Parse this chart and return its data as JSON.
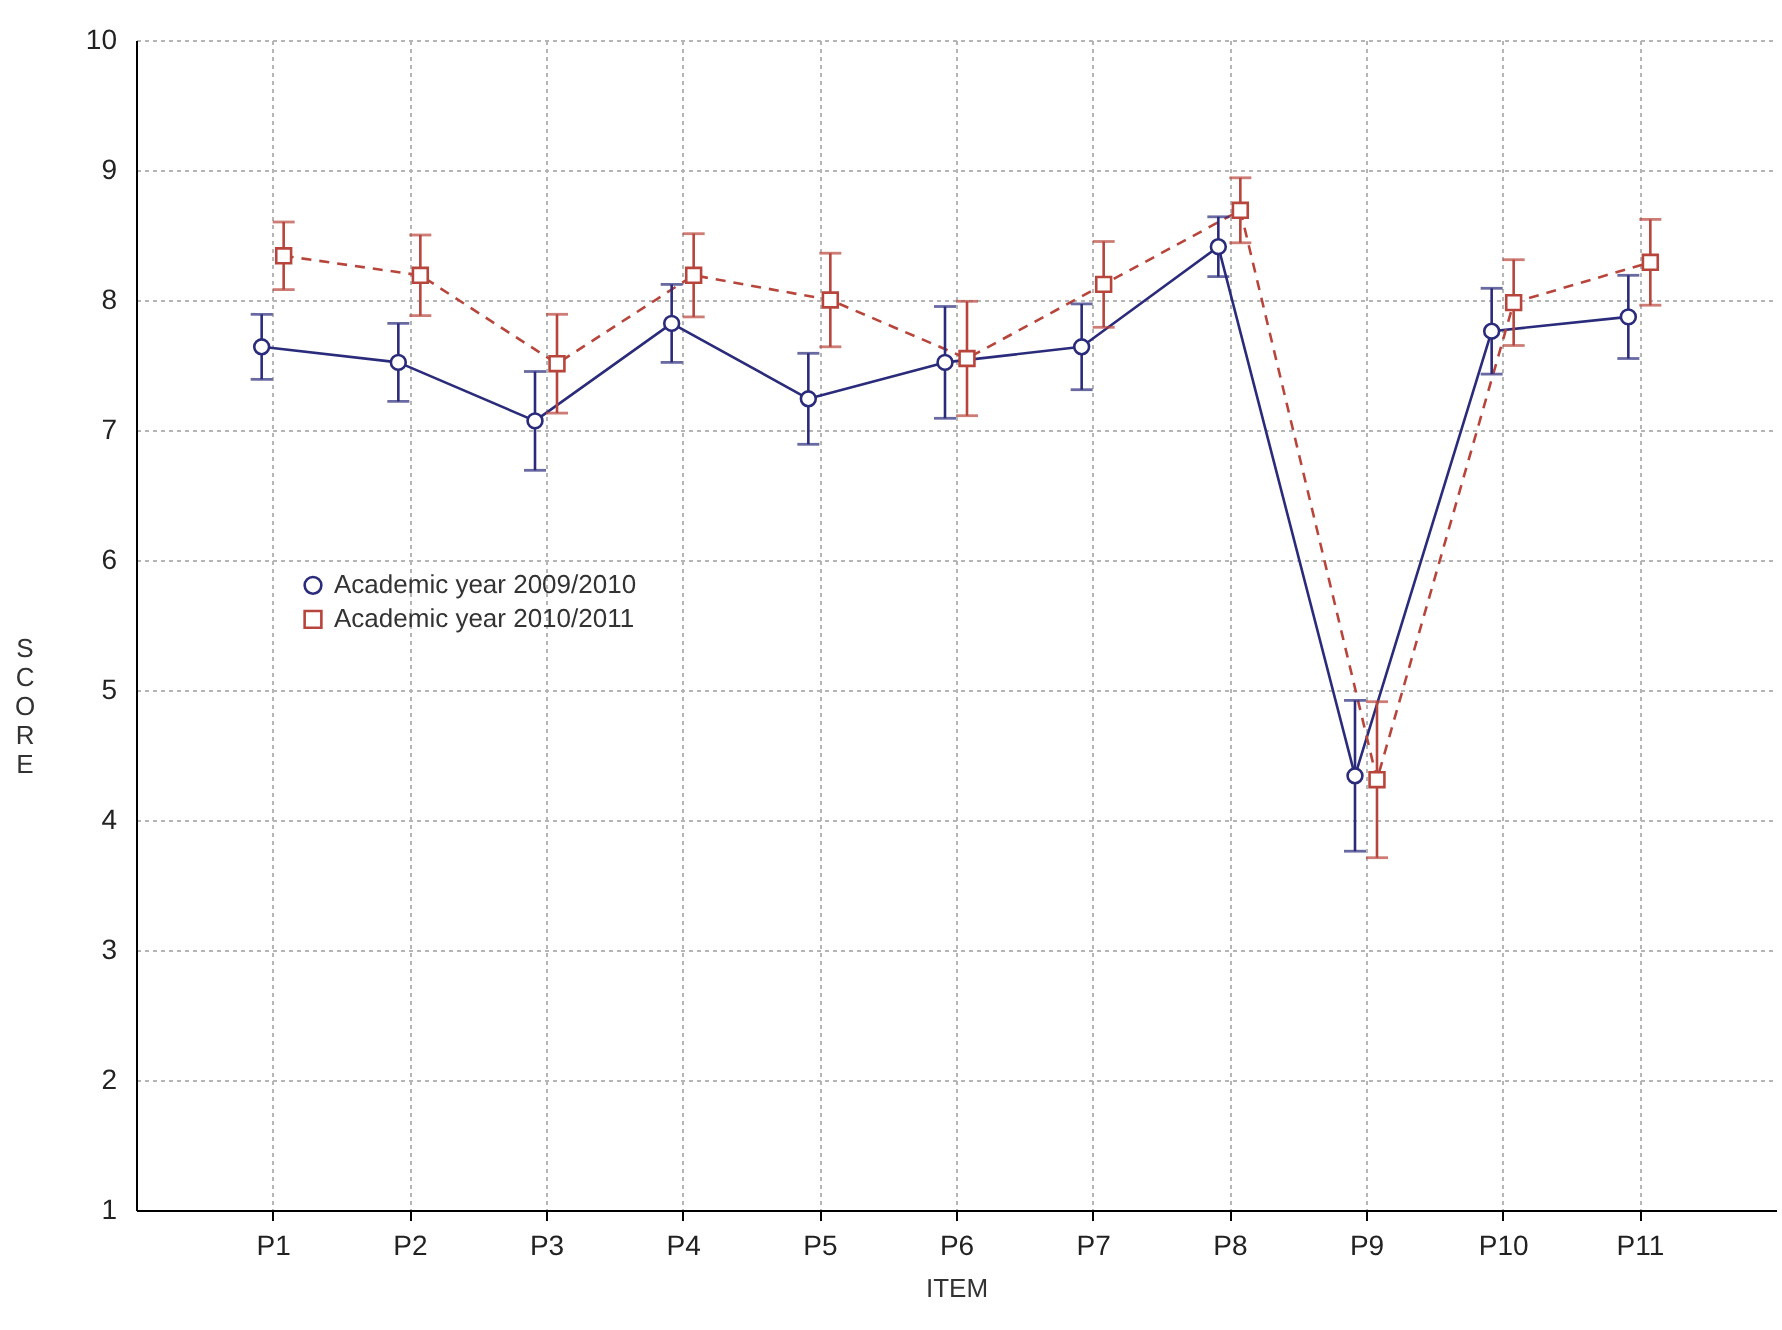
{
  "chart_data": {
    "type": "line",
    "xlabel": "ITEM",
    "ylabel": "SCORE",
    "categories": [
      "P1",
      "P2",
      "P3",
      "P4",
      "P5",
      "P6",
      "P7",
      "P8",
      "P9",
      "P10",
      "P11"
    ],
    "ylim": [
      1,
      10
    ],
    "yticks": [
      1,
      2,
      3,
      4,
      5,
      6,
      7,
      8,
      9,
      10
    ],
    "grid": true,
    "legend": "left",
    "series": [
      {
        "name": "Academic year 2009/2010",
        "color": "#2b2b7c",
        "marker": "circle",
        "line_style": "solid",
        "values": [
          7.64,
          7.52,
          7.07,
          7.82,
          7.24,
          7.52,
          7.64,
          8.41,
          4.34,
          7.76,
          7.87
        ],
        "errors": [
          0.25,
          0.3,
          0.38,
          0.3,
          0.35,
          0.43,
          0.33,
          0.23,
          0.58,
          0.33,
          0.32
        ]
      },
      {
        "name": "Academic year 2010/2011",
        "color": "#b8453c",
        "marker": "square",
        "line_style": "dashed",
        "values": [
          8.34,
          8.19,
          7.51,
          8.19,
          8.0,
          7.55,
          8.12,
          8.69,
          4.31,
          7.98,
          8.29
        ],
        "errors": [
          0.26,
          0.31,
          0.38,
          0.32,
          0.36,
          0.44,
          0.33,
          0.25,
          0.6,
          0.33,
          0.33
        ]
      }
    ]
  }
}
